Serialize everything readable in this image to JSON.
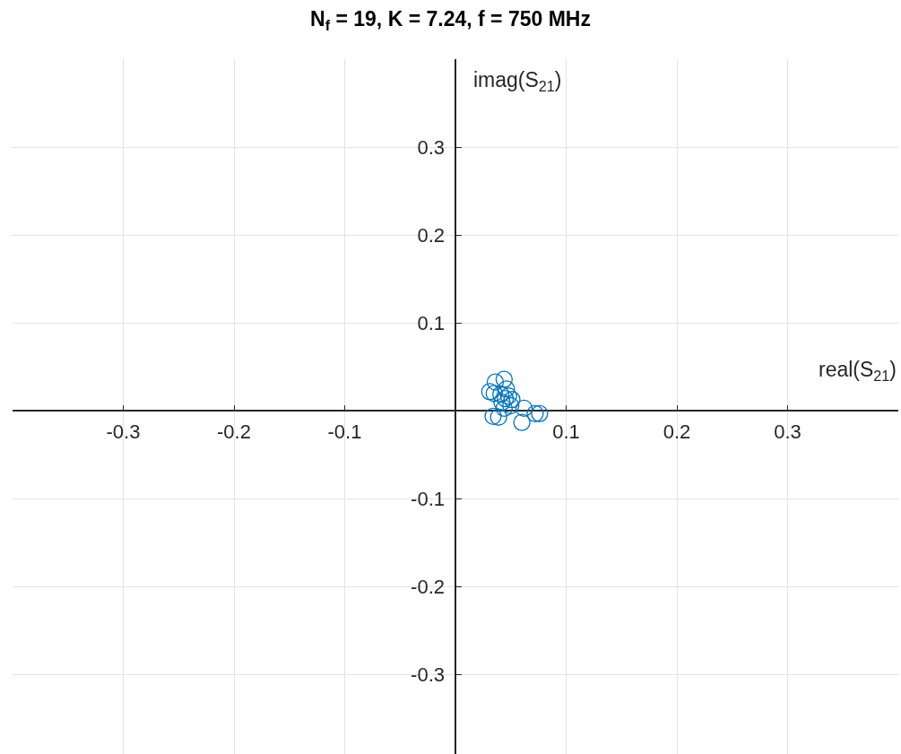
{
  "chart_data": {
    "type": "scatter",
    "title": "N$_{f}$ = 19, K = 7.24, f = 750 MHz",
    "xlabel": "real(S$_{21}$)",
    "ylabel": "imag(S$_{21}$)",
    "x": [
      0.044,
      0.036,
      0.031,
      0.035,
      0.041,
      0.046,
      0.048,
      0.045,
      0.042,
      0.051,
      0.05,
      0.044,
      0.034,
      0.039,
      0.062,
      0.06,
      0.072,
      0.076
    ],
    "series": [
      {
        "color": "#0072bd",
        "values": [
          0.036,
          0.033,
          0.022,
          0.02,
          0.019,
          0.025,
          0.017,
          0.014,
          0.01,
          0.013,
          0.006,
          0.003,
          -0.006,
          -0.007,
          0.003,
          -0.013,
          -0.003,
          -0.003
        ]
      }
    ],
    "marker": "circle",
    "grid": true,
    "xlim": [
      -0.4,
      0.4
    ],
    "ylim": [
      -0.39,
      0.4
    ],
    "xticks": [
      -0.3,
      -0.2,
      -0.1,
      0.1,
      0.2,
      0.3
    ],
    "yticks": [
      -0.3,
      -0.2,
      -0.1,
      0.1,
      0.2,
      0.3
    ]
  }
}
